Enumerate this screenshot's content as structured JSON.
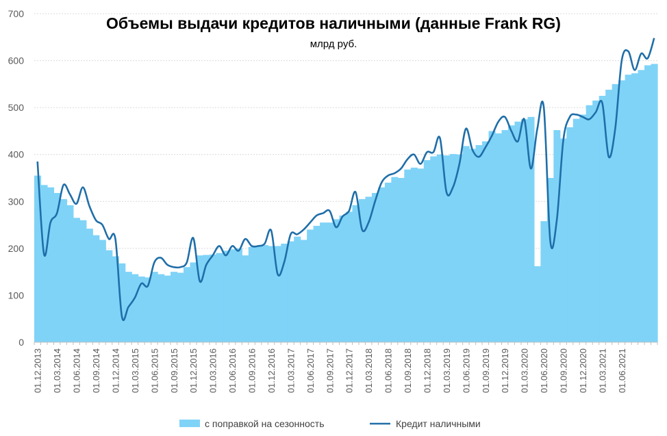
{
  "chart_data": {
    "type": "bar+line",
    "title": "Объемы выдачи кредитов наличными (данные Frank RG)",
    "subtitle": "млрд руб.",
    "xlabel": "",
    "ylabel": "",
    "ylim": [
      0,
      700
    ],
    "yticks": [
      0,
      100,
      200,
      300,
      400,
      500,
      600,
      700
    ],
    "grid": true,
    "legend_position": "bottom",
    "colors": {
      "bars": "#7fd3f7",
      "line": "#1f6ea8"
    },
    "x_tick_labels": [
      "01.12.2013",
      "01.03.2014",
      "01.06.2014",
      "01.09.2014",
      "01.12.2014",
      "01.03.2015",
      "01.06.2015",
      "01.09.2015",
      "01.12.2015",
      "01.03.2016",
      "01.06.2016",
      "01.09.2016",
      "01.12.2016",
      "01.03.2017",
      "01.06.2017",
      "01.09.2017",
      "01.12.2017",
      "01.03.2018",
      "01.06.2018",
      "01.09.2018",
      "01.12.2018",
      "01.03.2019",
      "01.06.2019",
      "01.09.2019",
      "01.12.2019",
      "01.03.2020",
      "01.06.2020",
      "01.09.2020",
      "01.12.2020",
      "01.03.2021",
      "01.06.2021"
    ],
    "series": [
      {
        "name": "с поправкой на сезонность",
        "kind": "bar",
        "values": [
          355,
          335,
          330,
          318,
          305,
          292,
          265,
          260,
          242,
          228,
          218,
          196,
          183,
          168,
          150,
          145,
          140,
          138,
          150,
          145,
          142,
          150,
          148,
          160,
          170,
          185,
          186,
          187,
          190,
          195,
          198,
          200,
          185,
          203,
          205,
          207,
          205,
          205,
          210,
          215,
          225,
          218,
          240,
          248,
          255,
          255,
          262,
          270,
          278,
          292,
          305,
          310,
          318,
          330,
          340,
          352,
          350,
          368,
          372,
          370,
          388,
          396,
          400,
          398,
          401,
          400,
          418,
          412,
          420,
          428,
          450,
          445,
          452,
          462,
          470,
          475,
          480,
          162,
          258,
          350,
          452,
          434,
          458,
          476,
          485,
          505,
          515,
          525,
          538,
          550,
          558,
          570,
          573,
          580,
          590,
          593
        ]
      },
      {
        "name": "Кредит наличными",
        "kind": "line",
        "values": [
          385,
          188,
          255,
          275,
          335,
          315,
          295,
          330,
          290,
          260,
          250,
          220,
          220,
          55,
          75,
          95,
          125,
          120,
          170,
          180,
          165,
          160,
          160,
          170,
          222,
          130,
          165,
          185,
          205,
          185,
          205,
          195,
          220,
          205,
          205,
          210,
          238,
          145,
          170,
          230,
          230,
          240,
          255,
          270,
          275,
          280,
          245,
          268,
          280,
          320,
          240,
          255,
          300,
          340,
          355,
          360,
          370,
          390,
          400,
          380,
          405,
          405,
          435,
          320,
          330,
          380,
          455,
          410,
          395,
          415,
          440,
          470,
          480,
          450,
          428,
          475,
          370,
          455,
          500,
          215,
          260,
          430,
          480,
          485,
          480,
          475,
          490,
          510,
          395,
          455,
          600,
          620,
          580,
          615,
          605,
          648
        ]
      }
    ]
  },
  "legend": {
    "bar_label": "с поправкой на сезонность",
    "line_label": "Кредит наличными"
  }
}
